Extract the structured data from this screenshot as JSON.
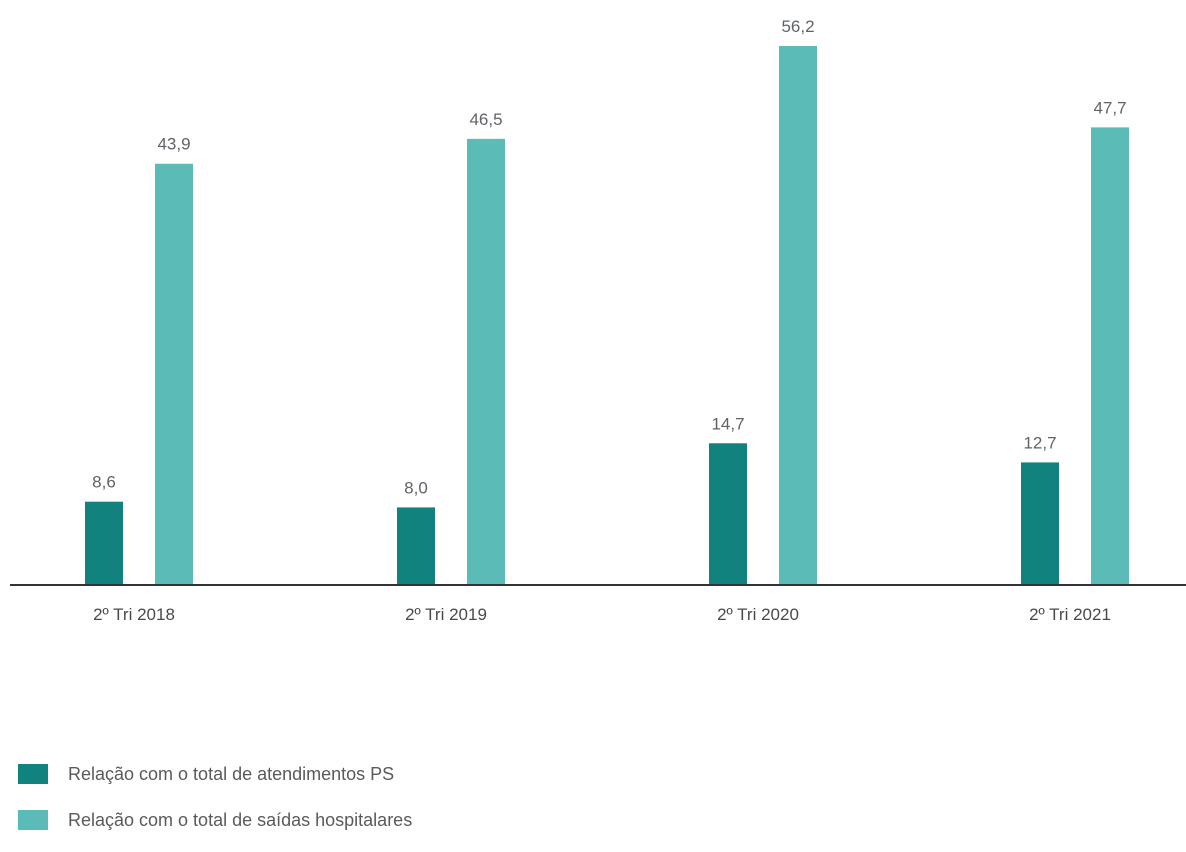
{
  "chart_data": {
    "type": "bar",
    "categories": [
      "2º Tri 2018",
      "2º Tri 2019",
      "2º Tri 2020",
      "2º Tri 2021"
    ],
    "series": [
      {
        "name": "Relação com o total de atendimentos PS",
        "values": [
          8.6,
          8.0,
          14.7,
          12.7
        ],
        "color": "#11827e"
      },
      {
        "name": "Relação com o total de saídas hospitalares",
        "values": [
          43.9,
          46.5,
          56.2,
          47.7
        ],
        "color": "#5bbcb7"
      }
    ],
    "data_labels": [
      [
        "8,6",
        "8,0",
        "14,7",
        "12,7"
      ],
      [
        "43,9",
        "46,5",
        "56,2",
        "47,7"
      ]
    ],
    "ylim": [
      0,
      56.2
    ],
    "grid": false,
    "legend_position": "bottom-left"
  }
}
